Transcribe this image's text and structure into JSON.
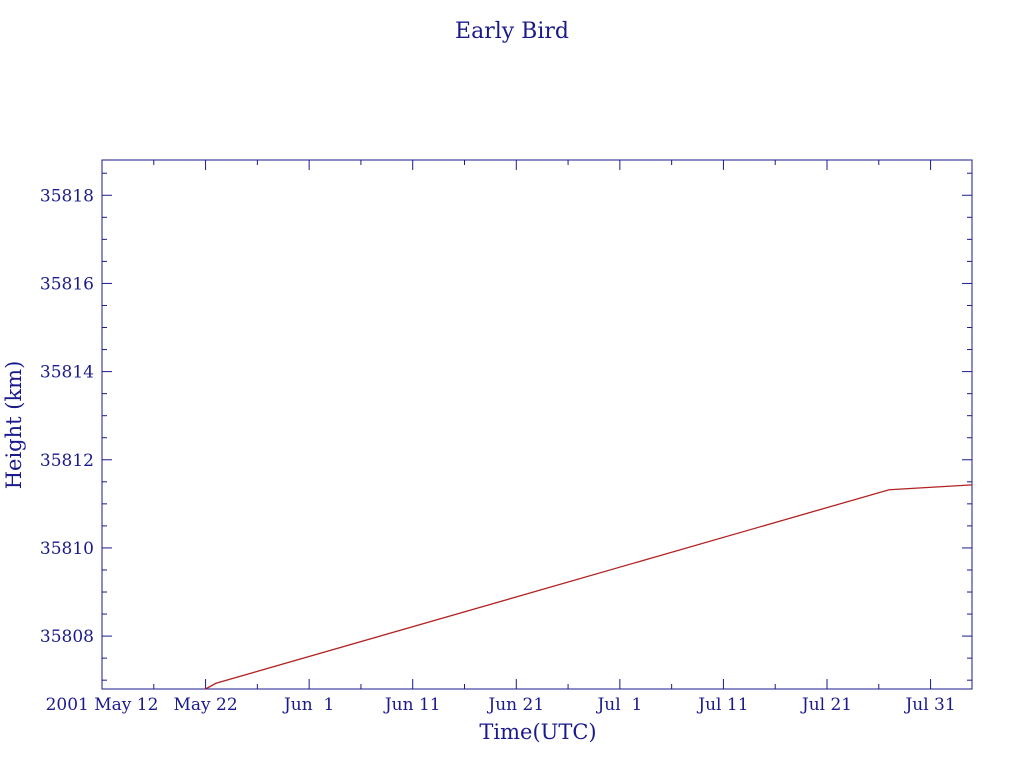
{
  "chart_data": {
    "type": "line",
    "title": "Early Bird",
    "xlabel": "Time(UTC)",
    "ylabel": "Height (km)",
    "x_tick_labels": [
      "2001 May 12",
      "May 22",
      "Jun  1",
      "Jun 11",
      "Jun 21",
      "Jul  1",
      "Jul 11",
      "Jul 21",
      "Jul 31"
    ],
    "x_tick_dates": [
      "2001-05-12",
      "2001-05-22",
      "2001-06-01",
      "2001-06-11",
      "2001-06-21",
      "2001-07-01",
      "2001-07-11",
      "2001-07-21",
      "2001-07-31"
    ],
    "xlim": [
      "2001-05-12",
      "2001-08-04"
    ],
    "ylim": [
      35806.8,
      35818.8
    ],
    "y_ticks": [
      35808,
      35810,
      35812,
      35814,
      35816,
      35818
    ],
    "grid": false,
    "colors": {
      "axes": "#1a1a8c",
      "line": "#b22222"
    },
    "series": [
      {
        "x": [
          "2001-05-22",
          "2001-05-23",
          "2001-07-27",
          "2001-08-04"
        ],
        "values": [
          35806.8,
          35806.93,
          35811.32,
          35811.43
        ]
      }
    ]
  }
}
